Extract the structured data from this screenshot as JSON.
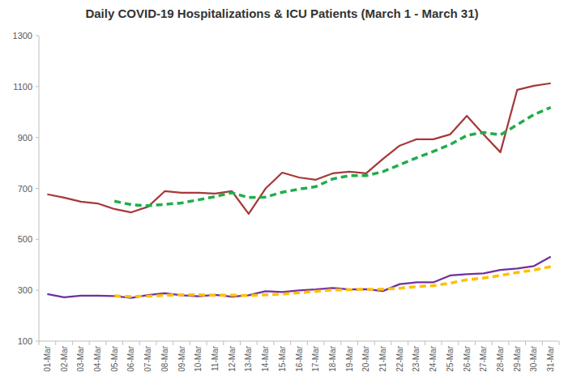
{
  "chart_data": {
    "type": "line",
    "title": "Daily COVID-19 Hospitalizations & ICU Patients (March 1 - March 31)",
    "categories": [
      "01-Mar",
      "02-Mar",
      "03-Mar",
      "04-Mar",
      "05-Mar",
      "06-Mar",
      "07-Mar",
      "08-Mar",
      "09-Mar",
      "10-Mar",
      "11-Mar",
      "12-Mar",
      "13-Mar",
      "14-Mar",
      "15-Mar",
      "16-Mar",
      "17-Mar",
      "18-Mar",
      "19-Mar",
      "20-Mar",
      "21-Mar",
      "22-Mar",
      "23-Mar",
      "24-Mar",
      "25-Mar",
      "26-Mar",
      "27-Mar",
      "28-Mar",
      "29-Mar",
      "30-Mar",
      "31-Mar"
    ],
    "series": [
      {
        "color": "#a5393b",
        "line_style": "solid",
        "values": [
          677,
          664,
          648,
          641,
          619,
          606,
          628,
          689,
          683,
          683,
          680,
          689,
          600,
          699,
          762,
          743,
          734,
          759,
          766,
          759,
          816,
          868,
          893,
          893,
          912,
          985,
          912,
          842,
          1087,
          1103,
          1113
        ]
      },
      {
        "color": "#1fae4b",
        "line_style": "dashed",
        "values": [
          null,
          null,
          null,
          null,
          650,
          636,
          632,
          637,
          643,
          655,
          668,
          683,
          664,
          666,
          685,
          697,
          707,
          737,
          750,
          750,
          766,
          793,
          820,
          845,
          872,
          908,
          920,
          910,
          950,
          990,
          1018
        ]
      },
      {
        "color": "#7030a0",
        "line_style": "solid",
        "values": [
          285,
          272,
          279,
          279,
          277,
          270,
          281,
          288,
          280,
          276,
          282,
          275,
          280,
          296,
          293,
          299,
          303,
          309,
          303,
          304,
          297,
          324,
          331,
          331,
          358,
          363,
          366,
          380,
          385,
          395,
          432
        ]
      },
      {
        "color": "#ffc000",
        "line_style": "dashed",
        "values": [
          null,
          null,
          null,
          null,
          278,
          275,
          277,
          280,
          282,
          282,
          281,
          281,
          279,
          282,
          285,
          290,
          296,
          301,
          302,
          304,
          304,
          308,
          314,
          318,
          328,
          341,
          348,
          358,
          370,
          379,
          393
        ]
      }
    ],
    "ylim": [
      100,
      1300
    ],
    "yticks": [
      100,
      300,
      500,
      700,
      900,
      1100,
      1300
    ],
    "grid": false
  }
}
